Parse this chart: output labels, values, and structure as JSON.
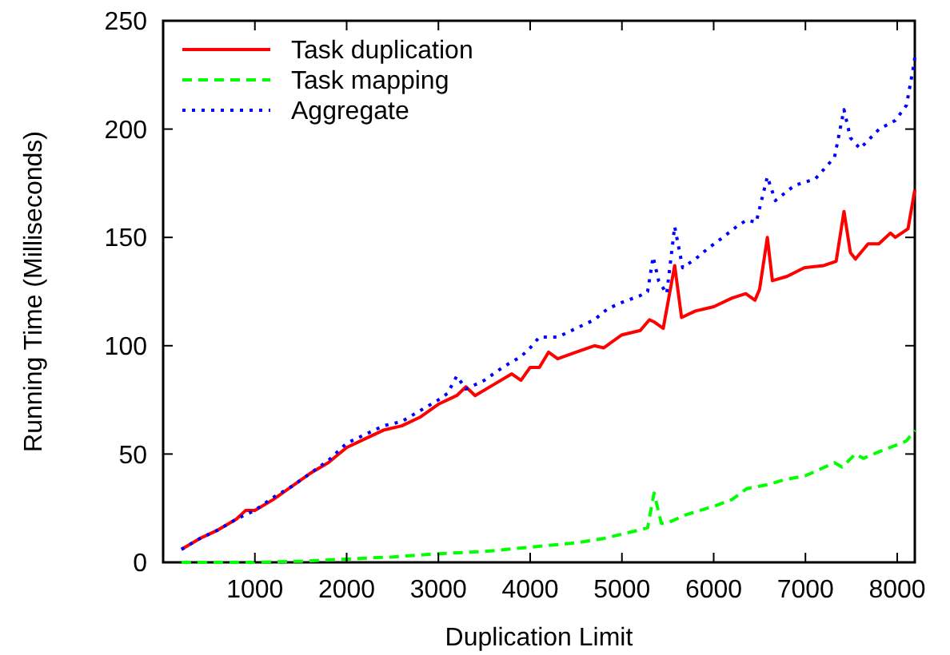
{
  "chart_data": {
    "type": "line",
    "xlabel": "Duplication Limit",
    "ylabel": "Running Time (Milliseconds)",
    "xlim": [
      0,
      8192
    ],
    "ylim": [
      0,
      250
    ],
    "xticks": [
      1000,
      2000,
      3000,
      4000,
      5000,
      6000,
      7000,
      8000
    ],
    "yticks": [
      0,
      50,
      100,
      150,
      200,
      250
    ],
    "grid": false,
    "legend": "top left",
    "series": [
      {
        "name": "Task duplication",
        "color": "#ff0000",
        "line_style": "solid",
        "x": [
          200,
          400,
          600,
          800,
          900,
          1000,
          1200,
          1400,
          1600,
          1800,
          2000,
          2200,
          2400,
          2600,
          2800,
          3000,
          3200,
          3300,
          3400,
          3600,
          3800,
          3900,
          4000,
          4100,
          4200,
          4300,
          4500,
          4700,
          4800,
          5000,
          5200,
          5300,
          5350,
          5450,
          5575,
          5650,
          5800,
          6000,
          6200,
          6350,
          6450,
          6500,
          6585,
          6640,
          6800,
          6986,
          7200,
          7335,
          7420,
          7490,
          7545,
          7683,
          7800,
          7927,
          7980,
          8118,
          8192
        ],
        "values": [
          6,
          11,
          15,
          20,
          24,
          24,
          29,
          35,
          41,
          46,
          53,
          57,
          61,
          63,
          67,
          73,
          77,
          81,
          77,
          82,
          87,
          84,
          90,
          90,
          97,
          94,
          97,
          100,
          99,
          105,
          107,
          112,
          111,
          108,
          137,
          113,
          116,
          118,
          122,
          124,
          121,
          126,
          150,
          130,
          132,
          136,
          137,
          139,
          162,
          143,
          140,
          147,
          147,
          152,
          150,
          154,
          172
        ]
      },
      {
        "name": "Task mapping",
        "color": "#00ff00",
        "line_style": "dashed",
        "x": [
          200,
          1000,
          1500,
          2000,
          2500,
          3000,
          3500,
          4000,
          4500,
          4800,
          5000,
          5200,
          5280,
          5350,
          5430,
          5488,
          5700,
          6010,
          6200,
          6359,
          6600,
          6760,
          7000,
          7317,
          7400,
          7544,
          7630,
          7800,
          7980,
          8100,
          8192
        ],
        "values": [
          0,
          0,
          0.5,
          1.5,
          2.5,
          4,
          5,
          7,
          9,
          11,
          13,
          15,
          16,
          32,
          18,
          18,
          22,
          26,
          29,
          34,
          36,
          38,
          40,
          46,
          44,
          50,
          48,
          51,
          54,
          56,
          61
        ]
      },
      {
        "name": "Aggregate",
        "color": "#0000ff",
        "line_style": "dotted",
        "x": [
          200,
          400,
          600,
          800,
          1000,
          1200,
          1400,
          1600,
          1800,
          2000,
          2200,
          2400,
          2600,
          2800,
          3000,
          3100,
          3200,
          3300,
          3500,
          3700,
          3900,
          4000,
          4100,
          4300,
          4500,
          4700,
          4843,
          5000,
          5192,
          5280,
          5340,
          5400,
          5488,
          5575,
          5662,
          5800,
          5941,
          6100,
          6250,
          6359,
          6463,
          6585,
          6672,
          6881,
          7108,
          7317,
          7420,
          7490,
          7595,
          7804,
          7980,
          8101,
          8170,
          8192
        ],
        "values": [
          6,
          11,
          15,
          20,
          24,
          30,
          35,
          41,
          47,
          55,
          59,
          63,
          65,
          70,
          75,
          78,
          86,
          80,
          84,
          90,
          95,
          99,
          104,
          104,
          108,
          112,
          117,
          120,
          123,
          125,
          141,
          130,
          124,
          155,
          136,
          140,
          145,
          150,
          155,
          158,
          157,
          178,
          167,
          174,
          177,
          187,
          209,
          196,
          191,
          200,
          204,
          211,
          227,
          233
        ]
      }
    ]
  }
}
